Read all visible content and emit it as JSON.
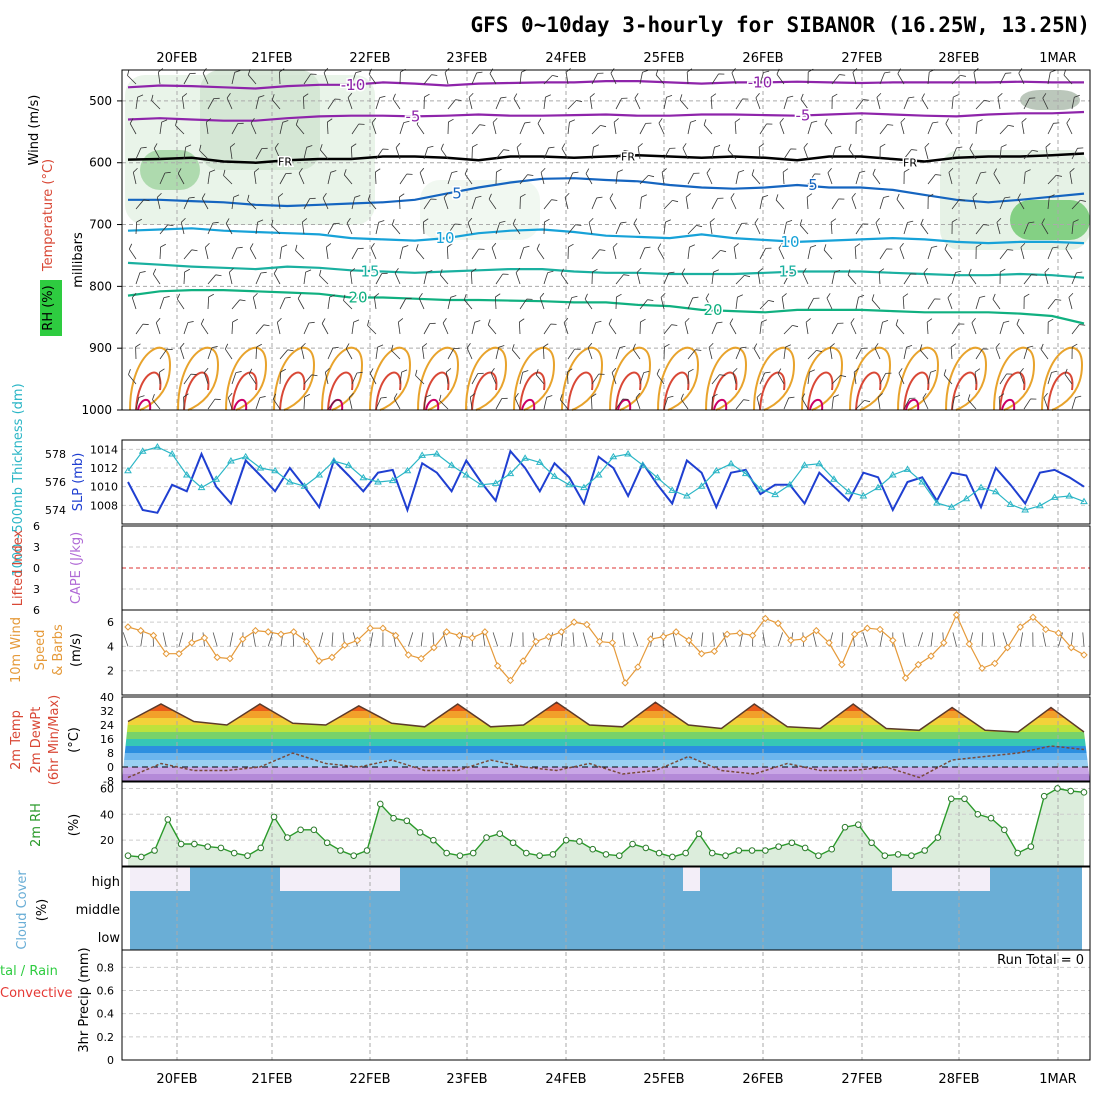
{
  "title": "GFS 0~10day 3-hourly for SIBANOR (16.25W, 13.25N)",
  "dates": [
    "20FEB",
    "21FEB",
    "22FEB",
    "23FEB",
    "24FEB",
    "25FEB",
    "26FEB",
    "27FEB",
    "28FEB",
    "1MAR"
  ],
  "colors": {
    "rh_green": "#2ecc40",
    "temp_purple": "#8e24aa",
    "temp_blue": "#1565c0",
    "temp_cyan": "#17a2d8",
    "temp_teal": "#1ab0a0",
    "temp_green": "#10b080",
    "temp_orange": "#e8a32c",
    "temp_red": "#d94836",
    "temp_magenta": "#cc0066",
    "slp": "#1f3fd1",
    "thickness": "#2bb6c6",
    "wind10": "#e59a3a",
    "cloud": "#6aaed6",
    "rh2m": "#2b9a2b"
  },
  "panels": {
    "upper": {
      "ylabels": [
        "Wind (m/s)",
        "Temperature (°C)",
        "RH (%)",
        "millibars"
      ],
      "yticks": [
        "500",
        "600",
        "700",
        "800",
        "900",
        "1000"
      ],
      "ylim": [
        450,
        1000
      ],
      "contours": [
        {
          "label": "-10",
          "level_mb": [
            478,
            475,
            476,
            478,
            480,
            476,
            474,
            474,
            470,
            472,
            475,
            472,
            471,
            470,
            470,
            468,
            468,
            470,
            472,
            470,
            470,
            469,
            470,
            471,
            470,
            470,
            470,
            470,
            469,
            470,
            470
          ]
        },
        {
          "label": "-5",
          "level_mb": [
            530,
            528,
            530,
            532,
            532,
            528,
            525,
            524,
            524,
            525,
            524,
            522,
            524,
            524,
            523,
            522,
            524,
            524,
            522,
            522,
            523,
            524,
            522,
            520,
            522,
            524,
            525,
            522,
            520,
            520,
            518
          ]
        },
        {
          "label": "FR",
          "level_mb": [
            595,
            594,
            592,
            598,
            600,
            596,
            594,
            594,
            590,
            590,
            592,
            596,
            590,
            590,
            592,
            590,
            588,
            590,
            592,
            590,
            592,
            596,
            590,
            590,
            594,
            598,
            592,
            590,
            590,
            588,
            585
          ]
        },
        {
          "label": "5",
          "level_mb": [
            660,
            660,
            662,
            664,
            668,
            670,
            668,
            666,
            664,
            660,
            650,
            640,
            632,
            626,
            625,
            628,
            630,
            636,
            640,
            642,
            640,
            636,
            640,
            640,
            644,
            652,
            660,
            664,
            660,
            655,
            650
          ]
        },
        {
          "label": "10",
          "level_mb": [
            710,
            708,
            706,
            710,
            712,
            714,
            716,
            722,
            724,
            726,
            722,
            714,
            710,
            708,
            712,
            718,
            720,
            722,
            716,
            722,
            725,
            728,
            726,
            724,
            722,
            724,
            728,
            730,
            728,
            728,
            730
          ]
        },
        {
          "label": "15",
          "level_mb": [
            762,
            765,
            768,
            770,
            772,
            768,
            770,
            774,
            776,
            778,
            776,
            774,
            772,
            772,
            776,
            778,
            778,
            780,
            780,
            780,
            778,
            776,
            776,
            776,
            778,
            780,
            782,
            782,
            780,
            782,
            786
          ]
        },
        {
          "label": "20",
          "level_mb": [
            815,
            808,
            806,
            806,
            808,
            810,
            812,
            818,
            818,
            820,
            822,
            822,
            823,
            824,
            826,
            826,
            830,
            832,
            838,
            840,
            842,
            838,
            838,
            838,
            840,
            842,
            842,
            842,
            844,
            848,
            860
          ]
        }
      ]
    },
    "slp_thickness": {
      "ylabel_left": "1000~500mb Thickness (dm)",
      "ylabel_right": "SLP (mb)",
      "left_ticks": [
        "578",
        "576",
        "574"
      ],
      "right_ticks": [
        "1014",
        "1012",
        "1010",
        "1008"
      ]
    },
    "cape": {
      "ylabel_left": "Lifted Index",
      "ylabel_right": "CAPE (J/kg)",
      "ticks": [
        "6",
        "3",
        "0",
        "3",
        "6"
      ]
    },
    "wind10m": {
      "ylabel": "10m Wind Speed & Barbs (m/s)",
      "ticks": [
        "6",
        "4",
        "2"
      ]
    },
    "temp2m": {
      "ylabel": "2m Temp 2m DewPt (6hr Min/Max) (°C)",
      "ticks": [
        "40",
        "32",
        "24",
        "16",
        "8",
        "0",
        "-8"
      ]
    },
    "rh2m": {
      "ylabel": "2m RH (%)",
      "ticks": [
        "60",
        "40",
        "20"
      ]
    },
    "cloud": {
      "ylabel": "Cloud Cover (%)",
      "levels": [
        "high",
        "middle",
        "low"
      ]
    },
    "precip": {
      "ylabel": "3hr Precip (mm)",
      "legend_left": [
        "tal / Rain",
        "Convective"
      ],
      "ticks": [
        "0.8",
        "0.6",
        "0.4",
        "0.2",
        "0"
      ],
      "run_total": "Run Total = 0"
    }
  },
  "chart_data": [
    {
      "type": "line",
      "title": "SLP (mb)",
      "ylim": [
        1006,
        1015
      ],
      "series": [
        {
          "name": "SLP (mb)",
          "values": [
            1010.5,
            1007.5,
            1007.2,
            1010.2,
            1009.5,
            1013.5,
            1010,
            1008.2,
            1012.8,
            1011.2,
            1009.5,
            1012,
            1010,
            1007.8,
            1012.8,
            1011.2,
            1009.5,
            1011.5,
            1011.8,
            1007.5,
            1012.5,
            1011.5,
            1009.5,
            1012.8,
            1010.5,
            1008.5,
            1013.8,
            1012,
            1009.5,
            1012.5,
            1011,
            1008.2,
            1013.2,
            1012,
            1009,
            1012.5,
            1010.2,
            1008.2,
            1012.8,
            1011.5,
            1007.8,
            1011.5,
            1011.8,
            1009.2,
            1010.2,
            1010.2,
            1008.2,
            1011.5,
            1010,
            1008.5,
            1011.5,
            1011,
            1007.5,
            1010.5,
            1011,
            1008.5,
            1011.5,
            1011.2,
            1007.8,
            1012,
            1010.2,
            1008.2,
            1011.5,
            1011.8,
            1011,
            1010
          ]
        }
      ]
    },
    {
      "type": "line",
      "title": "1000~500mb Thickness (dm)",
      "series": [
        {
          "name": "1000~500mb Thickness (dm)",
          "values": [
            576.8,
            578.2,
            578.5,
            578.0,
            576.5,
            575.6,
            576.2,
            577.5,
            577.8,
            577.0,
            576.8,
            576.0,
            575.7,
            576.5,
            577.5,
            577.2,
            576.3,
            576.0,
            576.1,
            576.8,
            577.9,
            578.0,
            577.2,
            576.5,
            575.8,
            575.9,
            576.6,
            577.7,
            577.4,
            576.4,
            575.8,
            575.6,
            576.5,
            577.8,
            578.0,
            577.2,
            576.3,
            575.4,
            575.0,
            575.7,
            576.8,
            577.3,
            576.6,
            575.5,
            575.1,
            575.8,
            577.2,
            577.3,
            576.2,
            575.3,
            575.0,
            575.6,
            576.5,
            576.9,
            576.0,
            574.5,
            574.2,
            574.8,
            575.6,
            575.3,
            574.4,
            574.0,
            574.3,
            574.9,
            575.0,
            574.6
          ]
        }
      ]
    },
    {
      "type": "line",
      "title": "10m Wind Speed (m/s)",
      "ylim": [
        0,
        7
      ],
      "series": [
        {
          "name": "10m Wind Speed (m/s)",
          "values": [
            5.6,
            5.3,
            4.9,
            3.4,
            3.4,
            4.3,
            4.7,
            3.1,
            3.0,
            4.6,
            5.3,
            5.2,
            5.0,
            5.2,
            4.4,
            2.8,
            3.1,
            4.1,
            4.5,
            5.5,
            5.5,
            4.9,
            3.3,
            3.0,
            3.9,
            5.2,
            4.9,
            4.7,
            5.2,
            2.4,
            1.2,
            2.8,
            4.4,
            4.8,
            5.2,
            6.0,
            5.8,
            4.4,
            4.3,
            1.0,
            2.3,
            4.6,
            4.8,
            5.2,
            4.5,
            3.4,
            3.6,
            5.0,
            5.1,
            4.9,
            6.3,
            5.9,
            4.5,
            4.6,
            5.3,
            4.3,
            2.5,
            5.0,
            5.5,
            5.4,
            4.5,
            1.4,
            2.5,
            3.2,
            4.3,
            6.6,
            4.2,
            2.2,
            2.6,
            3.9,
            5.6,
            6.4,
            5.4,
            5.1,
            3.9,
            3.3
          ]
        }
      ]
    },
    {
      "type": "line",
      "title": "2m RH (%)",
      "ylim": [
        0,
        65
      ],
      "series": [
        {
          "name": "2m RH (%)",
          "values": [
            8,
            7,
            12,
            36,
            17,
            17,
            15,
            14,
            10,
            8,
            14,
            38,
            22,
            28,
            28,
            18,
            12,
            8,
            12,
            48,
            37,
            35,
            26,
            20,
            10,
            8,
            10,
            22,
            25,
            18,
            10,
            8,
            9,
            20,
            19,
            13,
            9,
            8,
            17,
            14,
            10,
            7,
            10,
            25,
            10,
            8,
            12,
            12,
            12,
            15,
            18,
            14,
            8,
            13,
            30,
            32,
            18,
            8,
            9,
            8,
            12,
            22,
            52,
            52,
            40,
            37,
            28,
            10,
            15,
            54,
            60,
            58,
            57
          ]
        }
      ]
    },
    {
      "type": "area",
      "title": "2m Temp (°C)",
      "ylim": [
        -8,
        40
      ],
      "series": [
        {
          "name": "2m Temp max",
          "values": [
            26,
            36,
            26,
            24,
            36,
            25,
            24,
            35,
            25,
            23,
            36,
            23,
            24,
            37,
            24,
            23,
            37,
            24,
            22,
            36,
            23,
            22,
            36,
            22,
            21,
            34,
            21,
            20,
            34,
            20
          ]
        },
        {
          "name": "2m DewPt",
          "values": [
            -6,
            2,
            -2,
            -2,
            0,
            8,
            2,
            0,
            4,
            -2,
            -2,
            4,
            0,
            -2,
            2,
            -4,
            -2,
            6,
            -2,
            -4,
            2,
            -2,
            -2,
            0,
            -6,
            4,
            6,
            8,
            12,
            10
          ]
        }
      ]
    }
  ]
}
